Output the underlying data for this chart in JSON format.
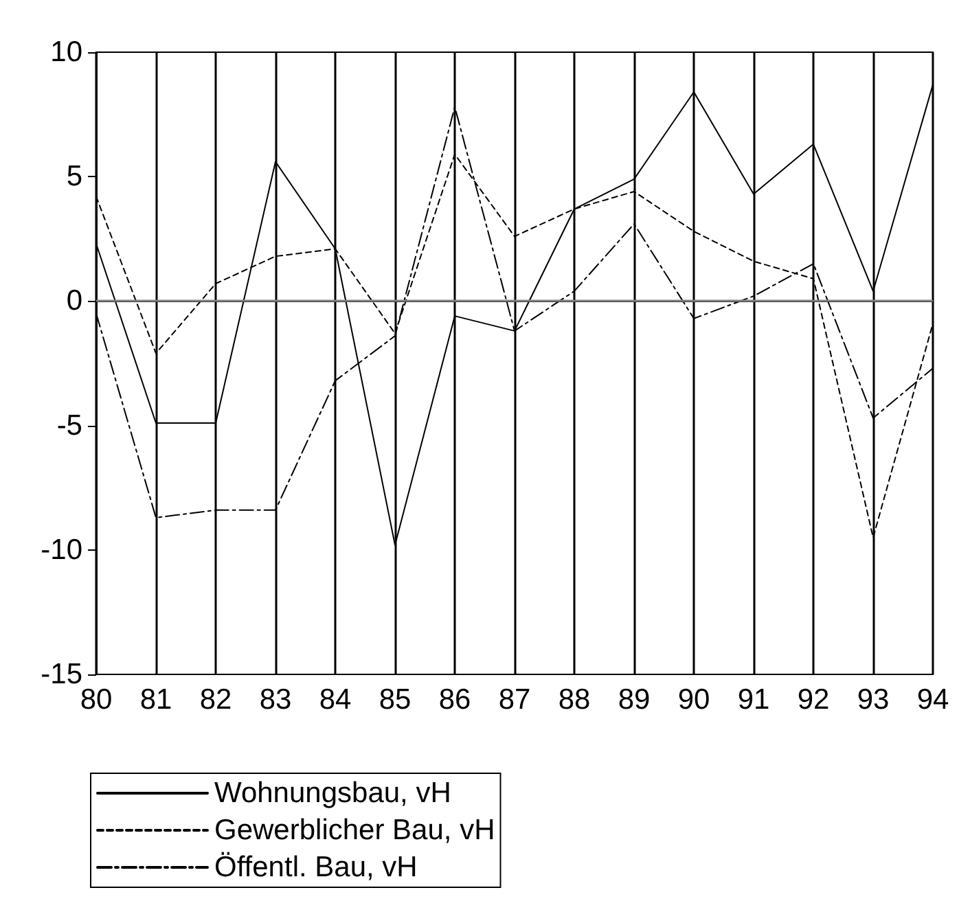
{
  "chart_data": {
    "type": "line",
    "x": [
      80,
      81,
      82,
      83,
      84,
      85,
      86,
      87,
      88,
      89,
      90,
      91,
      92,
      93,
      94
    ],
    "series": [
      {
        "name": "Wohnungsbau, vH",
        "color": "#000000",
        "line_style": "solid",
        "values": [
          2.3,
          -4.9,
          -4.9,
          5.6,
          2.1,
          -9.8,
          -0.6,
          -1.2,
          3.7,
          4.9,
          8.4,
          4.3,
          6.3,
          0.4,
          8.7
        ]
      },
      {
        "name": "Gewerblicher Bau, vH",
        "color": "#000000",
        "line_style": "dashed",
        "values": [
          4.2,
          -2.1,
          0.7,
          1.8,
          2.1,
          -1.3,
          5.9,
          2.6,
          3.7,
          4.4,
          2.8,
          1.6,
          0.9,
          -9.5,
          -0.9
        ]
      },
      {
        "name": "Öffentl. Bau, vH",
        "color": "#000000",
        "line_style": "dashdot",
        "values": [
          -0.5,
          -8.7,
          -8.4,
          -8.4,
          -3.2,
          -1.4,
          7.8,
          -1.2,
          0.4,
          3.1,
          -0.7,
          0.2,
          1.5,
          -4.7,
          -2.7
        ]
      }
    ],
    "xlim": [
      80,
      94
    ],
    "xticks": [
      80,
      81,
      82,
      83,
      84,
      85,
      86,
      87,
      88,
      89,
      90,
      91,
      92,
      93,
      94
    ],
    "ylim": [
      -15,
      10
    ],
    "yticks": [
      -15,
      -10,
      -5,
      0,
      5,
      10
    ],
    "grid": "x",
    "legend": "bottom left",
    "marker": "none",
    "ref_lines": [
      {
        "axis": "y",
        "value": 0,
        "color": "#808080"
      }
    ]
  }
}
